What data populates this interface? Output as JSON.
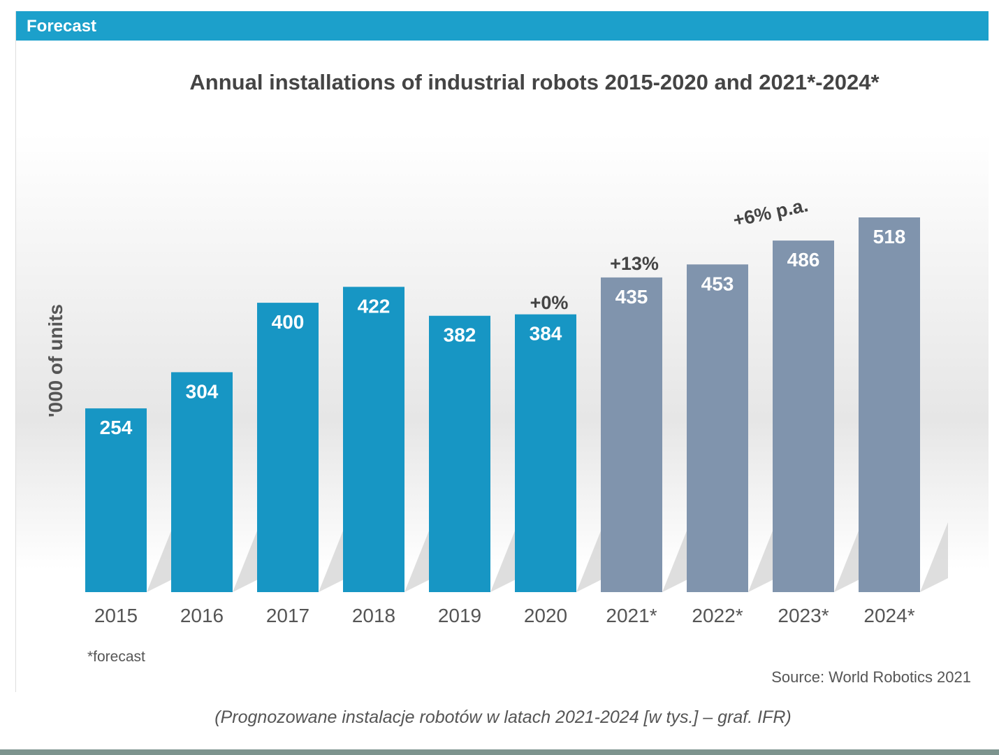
{
  "header": {
    "label": "Forecast"
  },
  "chart_data": {
    "type": "bar",
    "title": "Annual installations of industrial robots 2015-2020 and 2021*-2024*",
    "ylabel": "'000 of units",
    "xlabel": "",
    "categories": [
      "2015",
      "2016",
      "2017",
      "2018",
      "2019",
      "2020",
      "2021*",
      "2022*",
      "2023*",
      "2024*"
    ],
    "values": [
      254,
      304,
      400,
      422,
      382,
      384,
      435,
      453,
      486,
      518
    ],
    "forecast_flags": [
      false,
      false,
      false,
      false,
      false,
      false,
      true,
      true,
      true,
      true
    ],
    "colors": {
      "actual": "#1796c4",
      "forecast": "#8094ad"
    },
    "annotations": [
      {
        "text": "+0%",
        "category": "2020"
      },
      {
        "text": "+13%",
        "category": "2021*"
      },
      {
        "text": "+6% p.a.",
        "category": "2022*-2024*"
      }
    ],
    "ylim": [
      0,
      518
    ],
    "grid": false
  },
  "footnote": "*forecast",
  "source": "Source: World Robotics 2021",
  "caption": "(Prognozowane instalacje robotów w latach 2021-2024 [w tys.] – graf. IFR)"
}
